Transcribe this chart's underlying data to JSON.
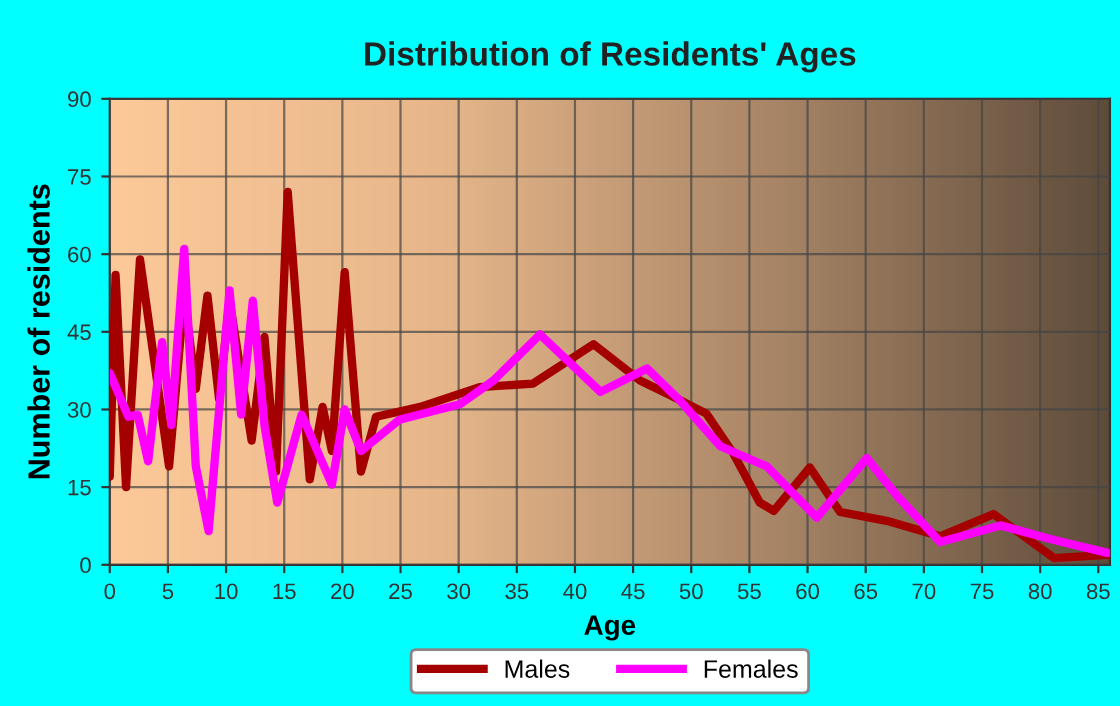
{
  "chart_data": {
    "type": "line",
    "title": "Distribution of Residents' Ages",
    "xlabel": "Age",
    "ylabel": "Number of residents",
    "xlim": [
      0,
      86
    ],
    "xticks": [
      0,
      5,
      10,
      15,
      20,
      25,
      30,
      35,
      40,
      45,
      50,
      55,
      60,
      65,
      70,
      75,
      80,
      85
    ],
    "ylim": [
      0,
      90
    ],
    "yticks": [
      0,
      15,
      30,
      45,
      60,
      75,
      90
    ],
    "grid": true,
    "legend": "bottom",
    "line_style": "solid",
    "marker": "none",
    "series": [
      {
        "name": "Males",
        "color": "#a50000",
        "x": [
          0,
          0.5,
          1.4,
          2.6,
          5.1,
          6.4,
          7.4,
          8.4,
          9.4,
          10.3,
          12.2,
          13.3,
          14.3,
          15.3,
          17.2,
          18.3,
          19.1,
          20.2,
          21.6,
          22.9,
          26.7,
          31.8,
          36.4,
          41.6,
          45.6,
          48.5,
          51.3,
          53.6,
          55.9,
          57.1,
          60.2,
          62.8,
          66.8,
          71.4,
          76,
          81.2,
          85.8
        ],
        "values": [
          17,
          56,
          15,
          59,
          19,
          52,
          34,
          52,
          32,
          51,
          24,
          44,
          18,
          72,
          16.5,
          30.5,
          22,
          56.5,
          18,
          28.6,
          30.5,
          34.3,
          35,
          42.6,
          35.6,
          32.4,
          29.2,
          21.6,
          12,
          10.4,
          18.8,
          10.2,
          8.5,
          5.5,
          9.8,
          1.3,
          1.9
        ]
      },
      {
        "name": "Females",
        "color": "#ff00ff",
        "x": [
          0,
          1.6,
          2.4,
          3.3,
          4.5,
          5.3,
          6.4,
          7.4,
          8.5,
          10.3,
          11.3,
          12.3,
          13.3,
          14.4,
          16.5,
          19.1,
          20.2,
          21.6,
          24.9,
          30.1,
          33,
          37,
          42.2,
          46.2,
          49,
          52.5,
          56.5,
          60.8,
          65.1,
          67.7,
          71.4,
          76.6,
          81.2,
          85.8
        ],
        "values": [
          37,
          28.6,
          29,
          20,
          43,
          27,
          61,
          19,
          6.5,
          53,
          29,
          51,
          27,
          12,
          29,
          15.5,
          30,
          22,
          28,
          31,
          35.6,
          44.5,
          33.4,
          37.9,
          31.8,
          22.9,
          19,
          9.1,
          20.6,
          13.3,
          4.4,
          7.6,
          4.8,
          2.3
        ]
      }
    ]
  }
}
